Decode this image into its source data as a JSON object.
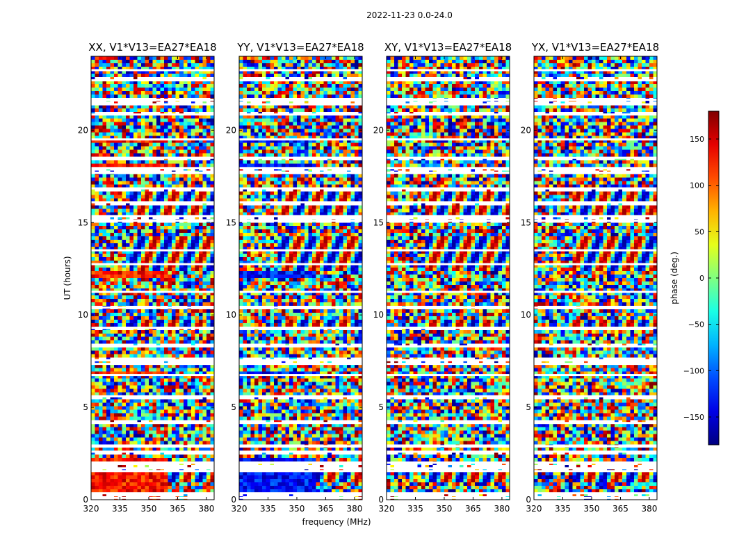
{
  "chart_data": {
    "type": "heatmap",
    "suptitle": "2022-11-23 0.0-24.0",
    "xlabel": "frequency (MHz)",
    "ylabel": "UT (hours)",
    "xlim": [
      320,
      384
    ],
    "ylim": [
      0,
      24
    ],
    "x_ticks": [
      320,
      335,
      350,
      365,
      380
    ],
    "y_ticks": [
      0,
      5,
      10,
      15,
      20
    ],
    "colorbar": {
      "label": "phase (deg.)",
      "range": [
        -180,
        180
      ],
      "ticks": [
        -150,
        -100,
        -50,
        0,
        50,
        100,
        150
      ],
      "tick_labels": [
        "−150",
        "−100",
        "−50",
        "0",
        "50",
        "100",
        "150"
      ],
      "colormap": "jet"
    },
    "panels": [
      {
        "title": "XX, V1*V13=EA27*EA18",
        "polarization": "XX",
        "strong_phase_deg": 130
      },
      {
        "title": "YY, V1*V13=EA27*EA18",
        "polarization": "YY",
        "strong_phase_deg": -130
      },
      {
        "title": "XY, V1*V13=EA27*EA18",
        "polarization": "XY",
        "strong_phase_deg": null
      },
      {
        "title": "YX, V1*V13=EA27*EA18",
        "polarization": "YX",
        "strong_phase_deg": null
      }
    ],
    "flagged_ut_hours": [
      0.1,
      0.35,
      1.55,
      1.7,
      2.0,
      2.6,
      2.9,
      4.15,
      5.6,
      6.75,
      7.35,
      7.55,
      8.3,
      9.3,
      10.4,
      11.25,
      12.75,
      13.5,
      15.1,
      15.35,
      16.1,
      16.85,
      17.7,
      17.95,
      18.5,
      19.5,
      20.85,
      21.4,
      21.65,
      22.7,
      23.25
    ],
    "fringe_hours": [
      [
        1.0,
        1.5
      ],
      [
        9.3,
        9.7
      ],
      [
        12.3,
        14.2
      ],
      [
        15.0,
        16.9
      ],
      [
        20.0,
        20.3
      ]
    ]
  }
}
